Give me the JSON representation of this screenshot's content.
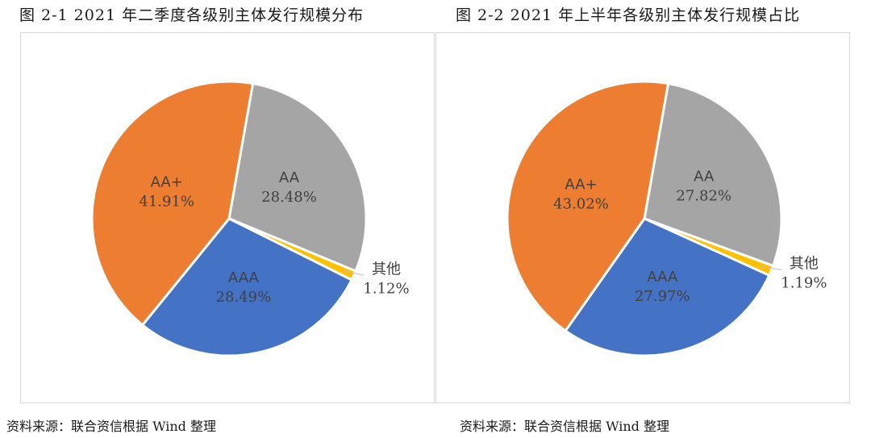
{
  "figures": [
    {
      "title": "图 2-1   2021 年二季度各级别主体发行规模分布",
      "source": "资料来源：联合资信根据 Wind 整理"
    },
    {
      "title": "图 2-2   2021 年上半年各级别主体发行规模占比",
      "source": "资料来源：联合资信根据 Wind 整理"
    }
  ],
  "colors": {
    "AA": "#a5a5a5",
    "其他": "#ffc000",
    "AAA": "#4472c4",
    "AA+": "#ed7d31",
    "label_dark": "#404040"
  },
  "chart_data": [
    {
      "type": "pie",
      "title": "2021 年二季度各级别主体发行规模分布",
      "slices": [
        {
          "label": "AA",
          "value": 28.48,
          "value_label": "28.48%"
        },
        {
          "label": "其他",
          "value": 1.12,
          "value_label": "1.12%"
        },
        {
          "label": "AAA",
          "value": 28.49,
          "value_label": "28.49%"
        },
        {
          "label": "AA+",
          "value": 41.91,
          "value_label": "41.91%"
        }
      ]
    },
    {
      "type": "pie",
      "title": "2021 年上半年各级别主体发行规模占比",
      "slices": [
        {
          "label": "AA",
          "value": 27.82,
          "value_label": "27.82%"
        },
        {
          "label": "其他",
          "value": 1.19,
          "value_label": "1.19%"
        },
        {
          "label": "AAA",
          "value": 27.97,
          "value_label": "27.97%"
        },
        {
          "label": "AA+",
          "value": 43.02,
          "value_label": "43.02%"
        }
      ]
    }
  ]
}
